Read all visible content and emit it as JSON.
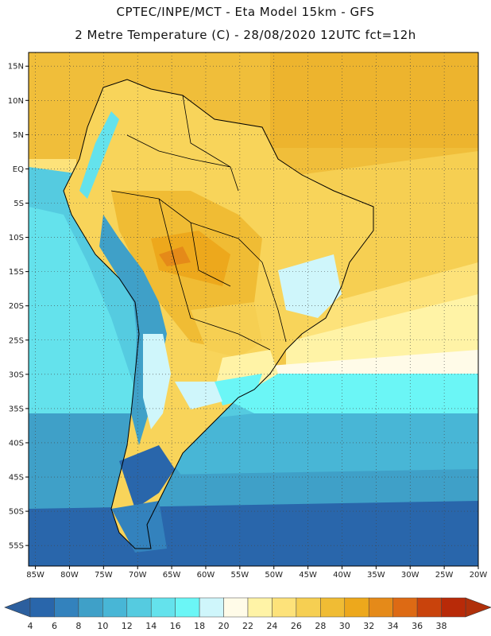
{
  "header": {
    "line1": "CPTEC/INPE/MCT -  Eta Model 15km - GFS",
    "line2": "2 Metre Temperature (C) - 28/08/2020 12UTC fct=12h"
  },
  "map": {
    "lon_range": [
      -86,
      -20
    ],
    "lat_range": [
      -58,
      17
    ],
    "lat_ticks": [
      {
        "value": 15,
        "label": "15N"
      },
      {
        "value": 10,
        "label": "10N"
      },
      {
        "value": 5,
        "label": "5N"
      },
      {
        "value": 0,
        "label": "EQ"
      },
      {
        "value": -5,
        "label": "5S"
      },
      {
        "value": -10,
        "label": "10S"
      },
      {
        "value": -15,
        "label": "15S"
      },
      {
        "value": -20,
        "label": "20S"
      },
      {
        "value": -25,
        "label": "25S"
      },
      {
        "value": -30,
        "label": "30S"
      },
      {
        "value": -35,
        "label": "35S"
      },
      {
        "value": -40,
        "label": "40S"
      },
      {
        "value": -45,
        "label": "45S"
      },
      {
        "value": -50,
        "label": "50S"
      },
      {
        "value": -55,
        "label": "55S"
      }
    ],
    "lon_ticks": [
      {
        "value": -85,
        "label": "85W"
      },
      {
        "value": -80,
        "label": "80W"
      },
      {
        "value": -75,
        "label": "75W"
      },
      {
        "value": -70,
        "label": "70W"
      },
      {
        "value": -65,
        "label": "65W"
      },
      {
        "value": -60,
        "label": "60W"
      },
      {
        "value": -55,
        "label": "55W"
      },
      {
        "value": -50,
        "label": "50W"
      },
      {
        "value": -45,
        "label": "45W"
      },
      {
        "value": -40,
        "label": "40W"
      },
      {
        "value": -35,
        "label": "35W"
      },
      {
        "value": -30,
        "label": "30W"
      },
      {
        "value": -25,
        "label": "25W"
      },
      {
        "value": -20,
        "label": "20W"
      }
    ]
  },
  "legend": {
    "labels": [
      "4",
      "6",
      "8",
      "10",
      "12",
      "14",
      "16",
      "18",
      "20",
      "22",
      "24",
      "26",
      "28",
      "30",
      "32",
      "34",
      "36",
      "38"
    ],
    "colors": [
      "#2966ab",
      "#3382bd",
      "#3fa0c8",
      "#48b6d6",
      "#55cbe0",
      "#64e2ec",
      "#6bf6f6",
      "#cff6fb",
      "#fffbe8",
      "#fff3a6",
      "#fde27a",
      "#f6cf52",
      "#f0bc34",
      "#eda81c",
      "#e58a19",
      "#dd6a14",
      "#c9430c",
      "#b82a08"
    ],
    "left_arrow_color": "#2c5f9e",
    "right_arrow_color": "#b0300a"
  }
}
